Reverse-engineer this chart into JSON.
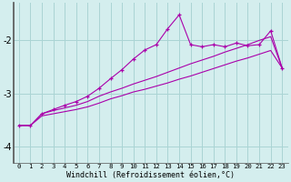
{
  "xlabel": "Windchill (Refroidissement éolien,°C)",
  "background_color": "#d4eeee",
  "grid_color": "#aad4d4",
  "line_color": "#aa00aa",
  "spine_color": "#555555",
  "x_values": [
    0,
    1,
    2,
    3,
    4,
    5,
    6,
    7,
    8,
    9,
    10,
    11,
    12,
    13,
    14,
    15,
    16,
    17,
    18,
    19,
    20,
    21,
    22,
    23
  ],
  "line_marked": [
    -3.6,
    -3.6,
    -3.38,
    -3.3,
    -3.22,
    -3.15,
    -3.05,
    -2.9,
    -2.72,
    -2.55,
    -2.35,
    -2.18,
    -2.08,
    -1.78,
    -1.52,
    -2.08,
    -2.12,
    -2.08,
    -2.12,
    -2.05,
    -2.1,
    -2.08,
    -1.82,
    -2.52
  ],
  "line_upper": [
    -3.6,
    -3.6,
    -3.38,
    -3.32,
    -3.27,
    -3.22,
    -3.15,
    -3.05,
    -2.97,
    -2.9,
    -2.82,
    -2.75,
    -2.68,
    -2.6,
    -2.52,
    -2.44,
    -2.37,
    -2.3,
    -2.22,
    -2.15,
    -2.08,
    -2.0,
    -1.93,
    -2.52
  ],
  "line_lower": [
    -3.6,
    -3.6,
    -3.42,
    -3.38,
    -3.34,
    -3.3,
    -3.25,
    -3.18,
    -3.1,
    -3.04,
    -2.97,
    -2.92,
    -2.86,
    -2.8,
    -2.73,
    -2.67,
    -2.6,
    -2.53,
    -2.46,
    -2.39,
    -2.33,
    -2.26,
    -2.19,
    -2.52
  ],
  "ylim": [
    -4.3,
    -1.3
  ],
  "yticks": [
    -4,
    -3,
    -2
  ],
  "xlim": [
    -0.5,
    23.5
  ]
}
